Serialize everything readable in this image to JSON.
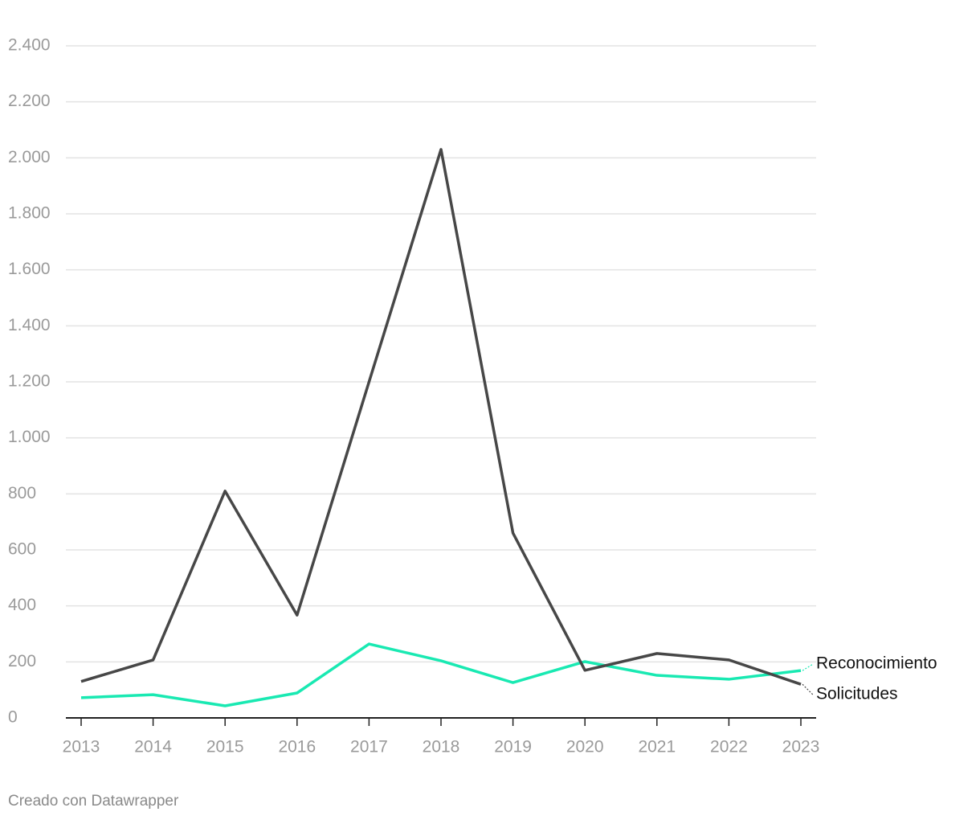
{
  "chart_data": {
    "type": "line",
    "categories": [
      "2013",
      "2014",
      "2015",
      "2016",
      "2017",
      "2018",
      "2019",
      "2020",
      "2021",
      "2022",
      "2023"
    ],
    "series": [
      {
        "name": "Reconocimiento",
        "color": "#19e9b2",
        "values": [
          72,
          83,
          43,
          89,
          264,
          204,
          126,
          201,
          152,
          138,
          169
        ]
      },
      {
        "name": "Solicitudes",
        "color": "#474747",
        "values": [
          130,
          207,
          810,
          367,
          1200,
          2030,
          660,
          170,
          230,
          207,
          120
        ]
      }
    ],
    "ylim": [
      0,
      2400
    ],
    "yticks": [
      0,
      200,
      400,
      600,
      800,
      {
        "value": 1000,
        "label": "1.000"
      },
      {
        "value": 1200,
        "label": "1.200"
      },
      {
        "value": 1400,
        "label": "1.400"
      },
      {
        "value": 1600,
        "label": "1.600"
      },
      {
        "value": 1800,
        "label": "1.800"
      },
      {
        "value": 2000,
        "label": "2.000"
      },
      {
        "value": 2200,
        "label": "2.200"
      },
      {
        "value": 2400,
        "label": "2.400"
      }
    ],
    "grid": true,
    "footer": "Creado con Datawrapper"
  }
}
